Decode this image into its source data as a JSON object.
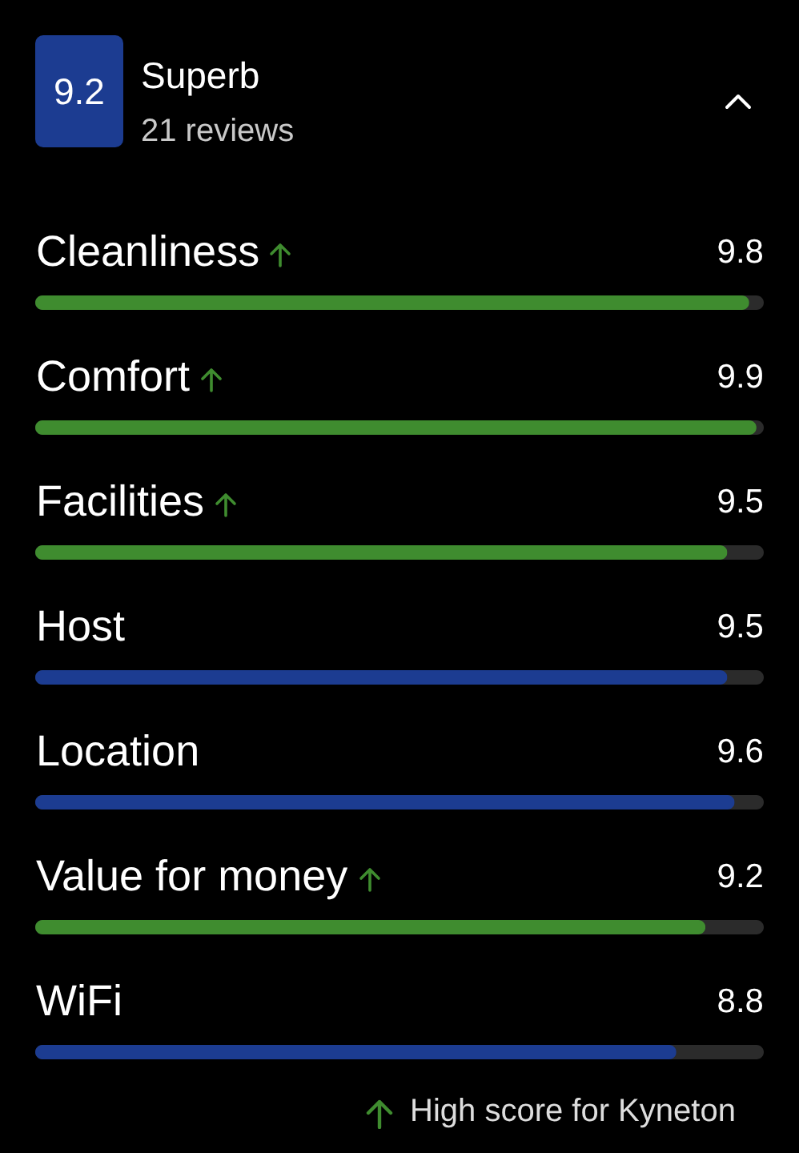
{
  "chart_data": {
    "type": "bar",
    "orientation": "horizontal",
    "title": "Superb",
    "subtitle": "21 reviews",
    "annotations": [
      "9.2",
      "High score for Kyneton"
    ],
    "categories": [
      "Cleanliness",
      "Comfort",
      "Facilities",
      "Host",
      "Location",
      "Value for money",
      "WiFi"
    ],
    "values": [
      9.8,
      9.9,
      9.5,
      9.5,
      9.6,
      9.2,
      8.8
    ],
    "colors": [
      "#3f8c2f",
      "#3f8c2f",
      "#3f8c2f",
      "#1c3c91",
      "#1c3c91",
      "#3f8c2f",
      "#1c3c91"
    ],
    "xlim": [
      0,
      10
    ],
    "data_labels": true,
    "tick_labels": "y"
  }
}
